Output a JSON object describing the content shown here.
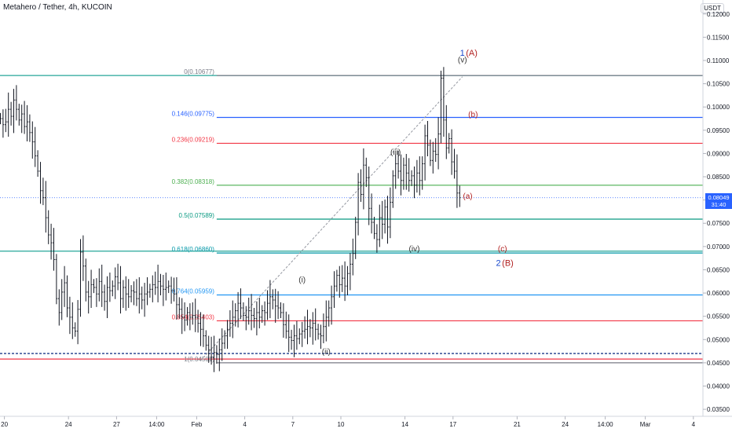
{
  "header": {
    "title": "Metahero / Tether, 4h, KUCOIN",
    "currency": "USDT"
  },
  "price_tag": {
    "price": "0.08049",
    "countdown": "31:40",
    "color": "#2962ff"
  },
  "chart_data": {
    "type": "candlestick",
    "ylim": [
      0.0335,
      0.123
    ],
    "yticks": [
      "0.12000",
      "0.11500",
      "0.11000",
      "0.10500",
      "0.10000",
      "0.09500",
      "0.09000",
      "0.08500",
      "0.08000",
      "0.07500",
      "0.07000",
      "0.06500",
      "0.06000",
      "0.05500",
      "0.05000",
      "0.04500",
      "0.04000",
      "0.03500"
    ],
    "ytick_values": [
      0.12,
      0.115,
      0.11,
      0.105,
      0.1,
      0.095,
      0.09,
      0.085,
      0.08,
      0.075,
      0.07,
      0.065,
      0.06,
      0.055,
      0.05,
      0.045,
      0.04,
      0.035
    ],
    "xticks": [
      {
        "label": "20",
        "t": 1.5
      },
      {
        "label": "24",
        "t": 25.5
      },
      {
        "label": "27",
        "t": 43.5
      },
      {
        "label": "14:00",
        "t": 58.5
      },
      {
        "label": "Feb",
        "t": 73.5
      },
      {
        "label": "4",
        "t": 91.5
      },
      {
        "label": "7",
        "t": 109.5
      },
      {
        "label": "10",
        "t": 127.5
      },
      {
        "label": "14",
        "t": 151.5
      },
      {
        "label": "17",
        "t": 169.5
      },
      {
        "label": "21",
        "t": 193.5
      },
      {
        "label": "24",
        "t": 211.5
      },
      {
        "label": "14:00",
        "t": 226.5
      },
      {
        "label": "Mar",
        "t": 241.5
      },
      {
        "label": "4",
        "t": 259.5
      }
    ],
    "fib_levels": [
      {
        "ratio": "0",
        "value": 0.10677,
        "label": "0(0.10677)",
        "color": "#787b86"
      },
      {
        "ratio": "0.146",
        "value": 0.09775,
        "label": "0.146(0.09775)",
        "color": "#2962ff"
      },
      {
        "ratio": "0.236",
        "value": 0.09219,
        "label": "0.236(0.09219)",
        "color": "#f23645"
      },
      {
        "ratio": "0.382",
        "value": 0.08318,
        "label": "0.382(0.08318)",
        "color": "#4caf50"
      },
      {
        "ratio": "0.5",
        "value": 0.07589,
        "label": "0.5(0.07589)",
        "color": "#089981"
      },
      {
        "ratio": "0.618",
        "value": 0.0686,
        "label": "0.618(0.06860)",
        "color": "#0097a7"
      },
      {
        "ratio": "0.764",
        "value": 0.05959,
        "label": "0.764(0.05959)",
        "color": "#2196f3"
      },
      {
        "ratio": "0.854",
        "value": 0.05403,
        "label": "0.854(0.05403)",
        "color": "#f23645"
      },
      {
        "ratio": "1",
        "value": 0.04501,
        "label": "1(0.04501)",
        "color": "#787b86"
      }
    ],
    "extra_lines": [
      {
        "value": 0.10677,
        "color": "#26a69a"
      },
      {
        "value": 0.069,
        "color": "#26a69a"
      },
      {
        "value": 0.0458,
        "color": "#f23645"
      },
      {
        "value": 0.047,
        "color": "#1e3a8a",
        "dashed": true
      },
      {
        "value": 0.08049,
        "color": "#2962ff",
        "dotted": true
      }
    ],
    "trend_line": {
      "from": {
        "t": 75,
        "y": 0.0455
      },
      "to": {
        "t": 173,
        "y": 0.1065
      }
    },
    "wave_labels": [
      {
        "text": "1",
        "color": "#1848cc",
        "t": 173,
        "y": 0.111,
        "big": true
      },
      {
        "text": "(A)",
        "color": "#b22222",
        "t": 176.5,
        "y": 0.111,
        "big": true
      },
      {
        "text": "(v)",
        "color": "#333333",
        "t": 173,
        "y": 0.1096
      },
      {
        "text": "(b)",
        "color": "#b22222",
        "t": 177,
        "y": 0.0978
      },
      {
        "text": "(iii)",
        "color": "#333333",
        "t": 148,
        "y": 0.0897
      },
      {
        "text": "(a)",
        "color": "#b22222",
        "t": 175,
        "y": 0.0803
      },
      {
        "text": "(iv)",
        "color": "#333333",
        "t": 155,
        "y": 0.069
      },
      {
        "text": "(c)",
        "color": "#b22222",
        "t": 188,
        "y": 0.069
      },
      {
        "text": "2",
        "color": "#1848cc",
        "t": 186.5,
        "y": 0.0658,
        "big": true
      },
      {
        "text": "(B)",
        "color": "#b22222",
        "t": 190,
        "y": 0.0658,
        "big": true
      },
      {
        "text": "(i)",
        "color": "#333333",
        "t": 113,
        "y": 0.0623
      },
      {
        "text": "(ii)",
        "color": "#333333",
        "t": 122,
        "y": 0.0468
      }
    ],
    "closes": [
      0.0975,
      0.0962,
      0.0968,
      0.0995,
      0.098,
      0.1015,
      0.0995,
      0.0972,
      0.0985,
      0.0958,
      0.0968,
      0.0945,
      0.0925,
      0.0895,
      0.0862,
      0.082,
      0.0805,
      0.0762,
      0.0725,
      0.0708,
      0.0672,
      0.0588,
      0.0558,
      0.0602,
      0.0622,
      0.0568,
      0.0548,
      0.0525,
      0.0518,
      0.0565,
      0.0688,
      0.0658,
      0.0602,
      0.0592,
      0.0618,
      0.0612,
      0.0598,
      0.0625,
      0.0602,
      0.0582,
      0.0612,
      0.0605,
      0.0615,
      0.0635,
      0.0622,
      0.0588,
      0.0612,
      0.0598,
      0.0592,
      0.0605,
      0.0602,
      0.0588,
      0.0598,
      0.0585,
      0.0598,
      0.0602,
      0.0608,
      0.0618,
      0.0612,
      0.0625,
      0.0615,
      0.0608,
      0.0612,
      0.0615,
      0.0605,
      0.0598,
      0.0575,
      0.0565,
      0.0548,
      0.0542,
      0.0558,
      0.0548,
      0.0552,
      0.0548,
      0.0535,
      0.0522,
      0.0508,
      0.0488,
      0.0478,
      0.0462,
      0.0472,
      0.0468,
      0.0478,
      0.0492,
      0.0508,
      0.0522,
      0.0535,
      0.0548,
      0.0562,
      0.0578,
      0.0568,
      0.0552,
      0.0548,
      0.0562,
      0.0552,
      0.0545,
      0.0558,
      0.0548,
      0.0562,
      0.0558,
      0.0578,
      0.0592,
      0.0585,
      0.0572,
      0.0568,
      0.0558,
      0.0532,
      0.0518,
      0.0505,
      0.0498,
      0.0508,
      0.0502,
      0.0512,
      0.0518,
      0.0522,
      0.0528,
      0.0525,
      0.0535,
      0.0522,
      0.0512,
      0.0508,
      0.0528,
      0.0548,
      0.0568,
      0.0592,
      0.0615,
      0.0638,
      0.0618,
      0.0632,
      0.0615,
      0.0642,
      0.0662,
      0.0685,
      0.0752,
      0.0838,
      0.0812,
      0.0875,
      0.0848,
      0.0782,
      0.0752,
      0.0728,
      0.0715,
      0.0762,
      0.0748,
      0.0785,
      0.0742,
      0.0795,
      0.0852,
      0.0878,
      0.0862,
      0.0842,
      0.0875,
      0.0858,
      0.0842,
      0.0852,
      0.0832,
      0.0858,
      0.0842,
      0.0878,
      0.0938,
      0.0918,
      0.0885,
      0.0905,
      0.0898,
      0.0942,
      0.1062,
      0.0972,
      0.0912,
      0.0932,
      0.0882,
      0.0862,
      0.0815,
      0.0805
    ]
  }
}
